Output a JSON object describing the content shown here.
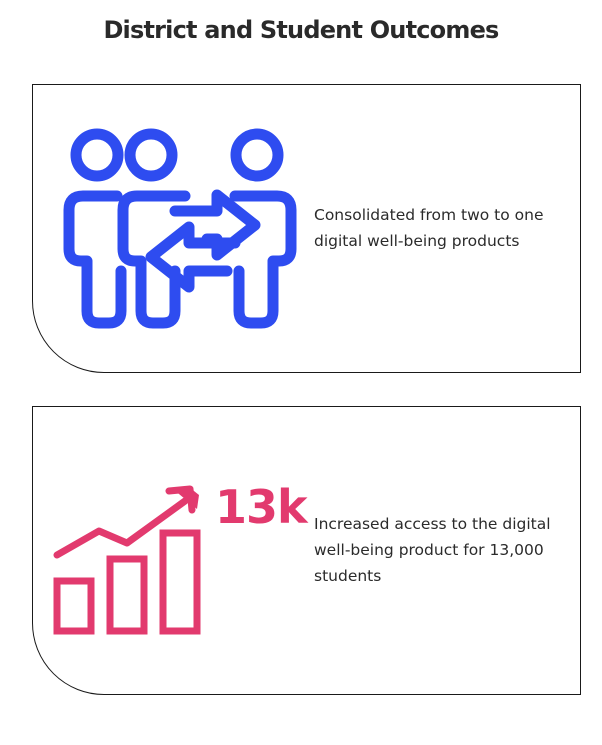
{
  "page": {
    "title": "District and Student Outcomes"
  },
  "colors": {
    "people_icon": "#2e4cf0",
    "chart_icon": "#e23a6e",
    "border": "#1a1a1a"
  },
  "cards": [
    {
      "icon": "people-exchange-icon",
      "text": "Consolidated from two to one digital well-being products"
    },
    {
      "icon": "growth-bar-chart-icon",
      "stat": "13k",
      "text": "Increased access to the digital well-being product for 13,000 students"
    }
  ]
}
